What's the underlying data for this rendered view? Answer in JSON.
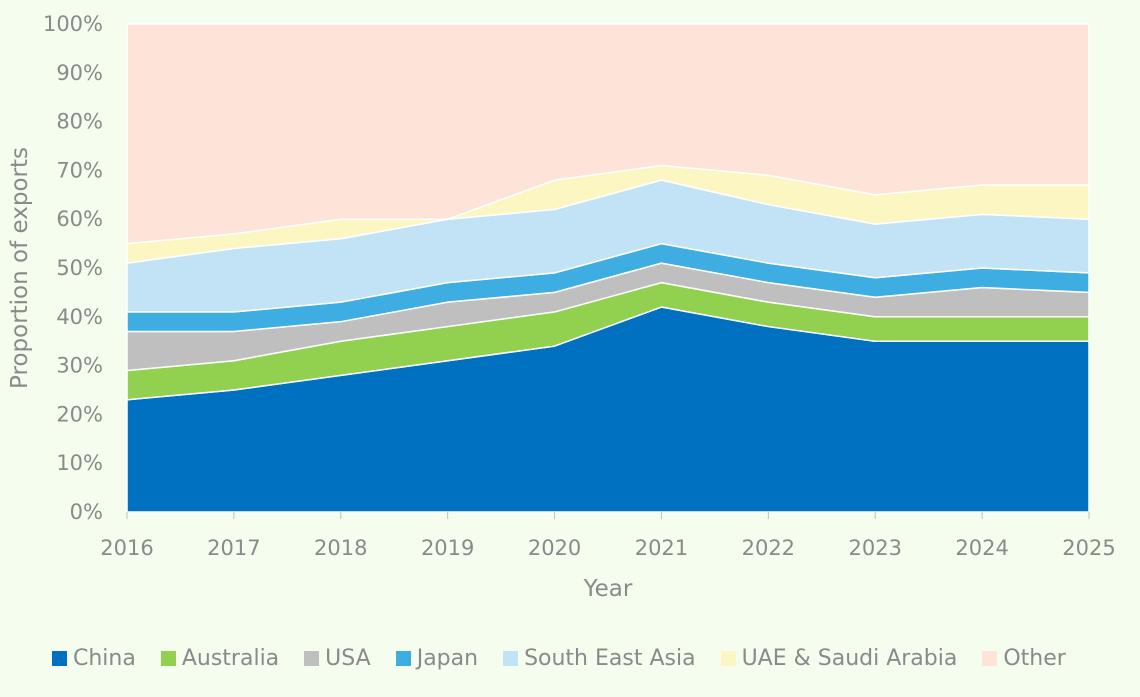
{
  "chart_data": {
    "type": "area",
    "stacked": true,
    "title": "",
    "xlabel": "Year",
    "ylabel": "Proportion of exports",
    "ylim": [
      0,
      100
    ],
    "y_ticks": [
      "0%",
      "10%",
      "20%",
      "30%",
      "40%",
      "50%",
      "60%",
      "70%",
      "80%",
      "90%",
      "100%"
    ],
    "x": [
      "2016",
      "2017",
      "2018",
      "2019",
      "2020",
      "2021",
      "2022",
      "2023",
      "2024",
      "2025"
    ],
    "legend_position": "bottom",
    "series": [
      {
        "name": "China",
        "color": "#0070c0",
        "values": [
          23,
          25,
          28,
          31,
          34,
          42,
          38,
          35,
          35,
          35
        ]
      },
      {
        "name": "Australia",
        "color": "#92d050",
        "values": [
          6,
          6,
          7,
          7,
          7,
          5,
          5,
          5,
          5,
          5
        ]
      },
      {
        "name": "USA",
        "color": "#bfbfbf",
        "values": [
          8,
          6,
          4,
          5,
          4,
          4,
          4,
          4,
          6,
          5
        ]
      },
      {
        "name": "Japan",
        "color": "#3dade2",
        "values": [
          4,
          4,
          4,
          4,
          4,
          4,
          4,
          4,
          4,
          4
        ]
      },
      {
        "name": "South East Asia",
        "color": "#c2e2f6",
        "values": [
          10,
          13,
          13,
          13,
          13,
          13,
          12,
          11,
          11,
          11
        ]
      },
      {
        "name": "UAE & Saudi Arabia",
        "color": "#fcf7c2",
        "values": [
          4,
          3,
          4,
          0,
          6,
          3,
          6,
          6,
          6,
          7
        ]
      },
      {
        "name": "Other",
        "color": "#fde3d8",
        "values": [
          45,
          43,
          40,
          40,
          32,
          29,
          31,
          35,
          33,
          33
        ]
      }
    ]
  }
}
